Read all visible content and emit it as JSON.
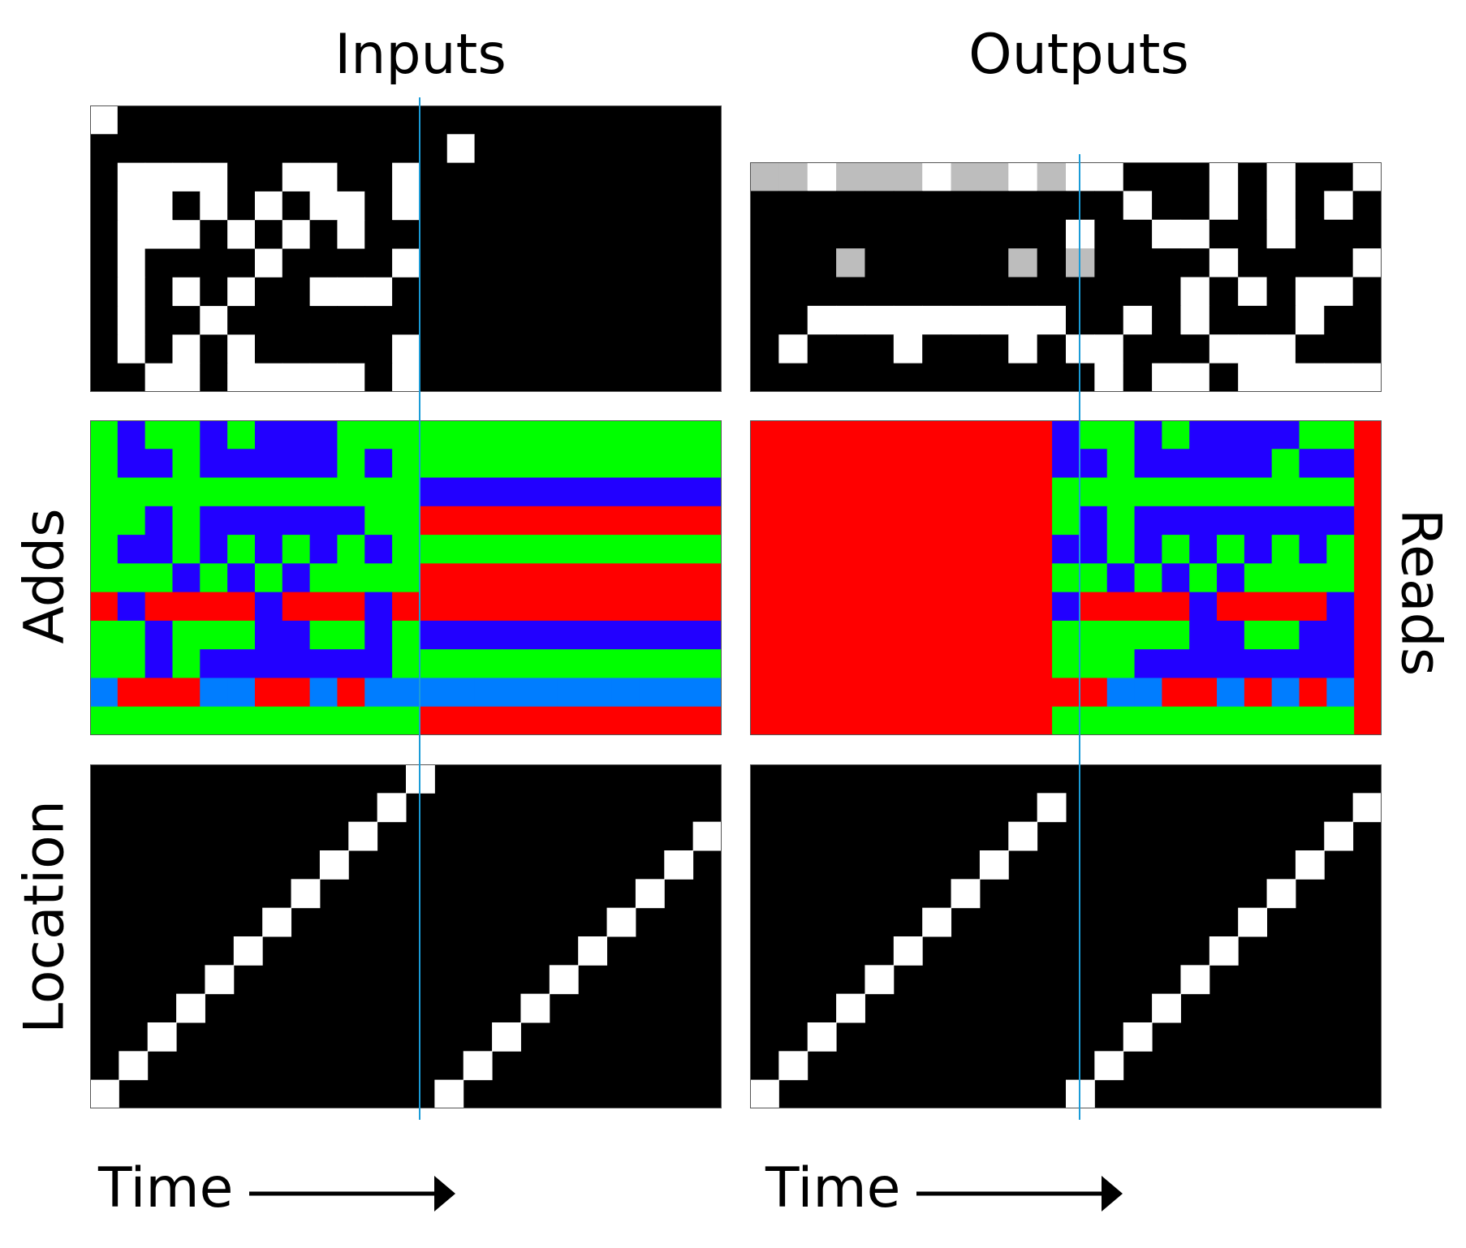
{
  "titles": {
    "inputs": "Inputs",
    "outputs": "Outputs"
  },
  "row_labels": {
    "adds": "Adds",
    "reads": "Reads",
    "location": "Location"
  },
  "time_label": "Time",
  "colors": {
    "white": "#ffffff",
    "black": "#000000",
    "gray": "#bdbdbd",
    "green": "#00ff00",
    "blue": "#2200ff",
    "red": "#ff0000",
    "lightblue": "#007dff",
    "marker": "#1a9bd7"
  },
  "legend_codes": {
    "0": "black",
    "1": "white",
    "g": "gray",
    "G": "green",
    "B": "blue",
    "R": "red",
    "L": "lightblue"
  },
  "panels": {
    "inputs_bits": [
      "10000000000000000000000",
      "00000000000001000000000",
      "01111001100100000000000",
      "01101010110100000000000",
      "01110101010000000000000",
      "01000010000100000000000",
      "01010100111000000000000",
      "01001000000000000000000",
      "01010100000100000000000",
      "00110111110100000000000"
    ],
    "adds": [
      "GBGGBGBBBGGGGGGGGGGGGGG",
      "GBBGBBBBBGBGGGGGGGGGGGG",
      "GGGGGGGGGGGGBBBBBBBBBBB",
      "GGBGBBBBBBGGRRRRRRRRRRR",
      "GBBGBGBGBGBGGGGGGGGGGGG",
      "GGGBGBGBGGGGRRRRRRRRRRR",
      "RBRRRRBRRRBRRRRRRRRRRRR",
      "GGBGGGBBGGBGBBBBBBBBBBB",
      "GGBGBBBBBBBGGGGGGGGGGGG",
      "LRRRLLRRLRLLLLLLLLLLLLL",
      "GGGGGGGGGGGGRRRRRRRRRRR"
    ],
    "outputs_bits": [
      "gg1ggg1gg1g11000101001",
      "0000000000000100101010",
      "0000000000010011001000",
      "000g00000g0g0000100001",
      "0000000000000001010110",
      "0011111111100101000100",
      "0100010001011000111000",
      "0000000000001011011111"
    ],
    "reads": [
      "RRRRRRRRRRRBGGBGBBBBGGR",
      "RRRRRRRRRRRBBGBBBBBGBBR",
      "RRRRRRRRRRRGGGGGGGGGGGR",
      "RRRRRRRRRRRGBGBBBBBBBBR",
      "RRRRRRRRRRRBBGBGBGBGBGR",
      "RRRRRRRRRRRGGBGBGBGGGGR",
      "RRRRRRRRRRRBRRRRBRRRRBR",
      "RRRRRRRRRRRGGGGGBBGGBBR",
      "RRRRRRRRRRRGGGBBBBBBBBR",
      "RRRRRRRRRRRRRLLRRLRLRLR",
      "RRRRRRRRRRRGGGGGGGGGGGR"
    ],
    "location_inputs_steps": [
      12,
      10
    ],
    "location_outputs_steps": [
      11,
      11
    ]
  }
}
